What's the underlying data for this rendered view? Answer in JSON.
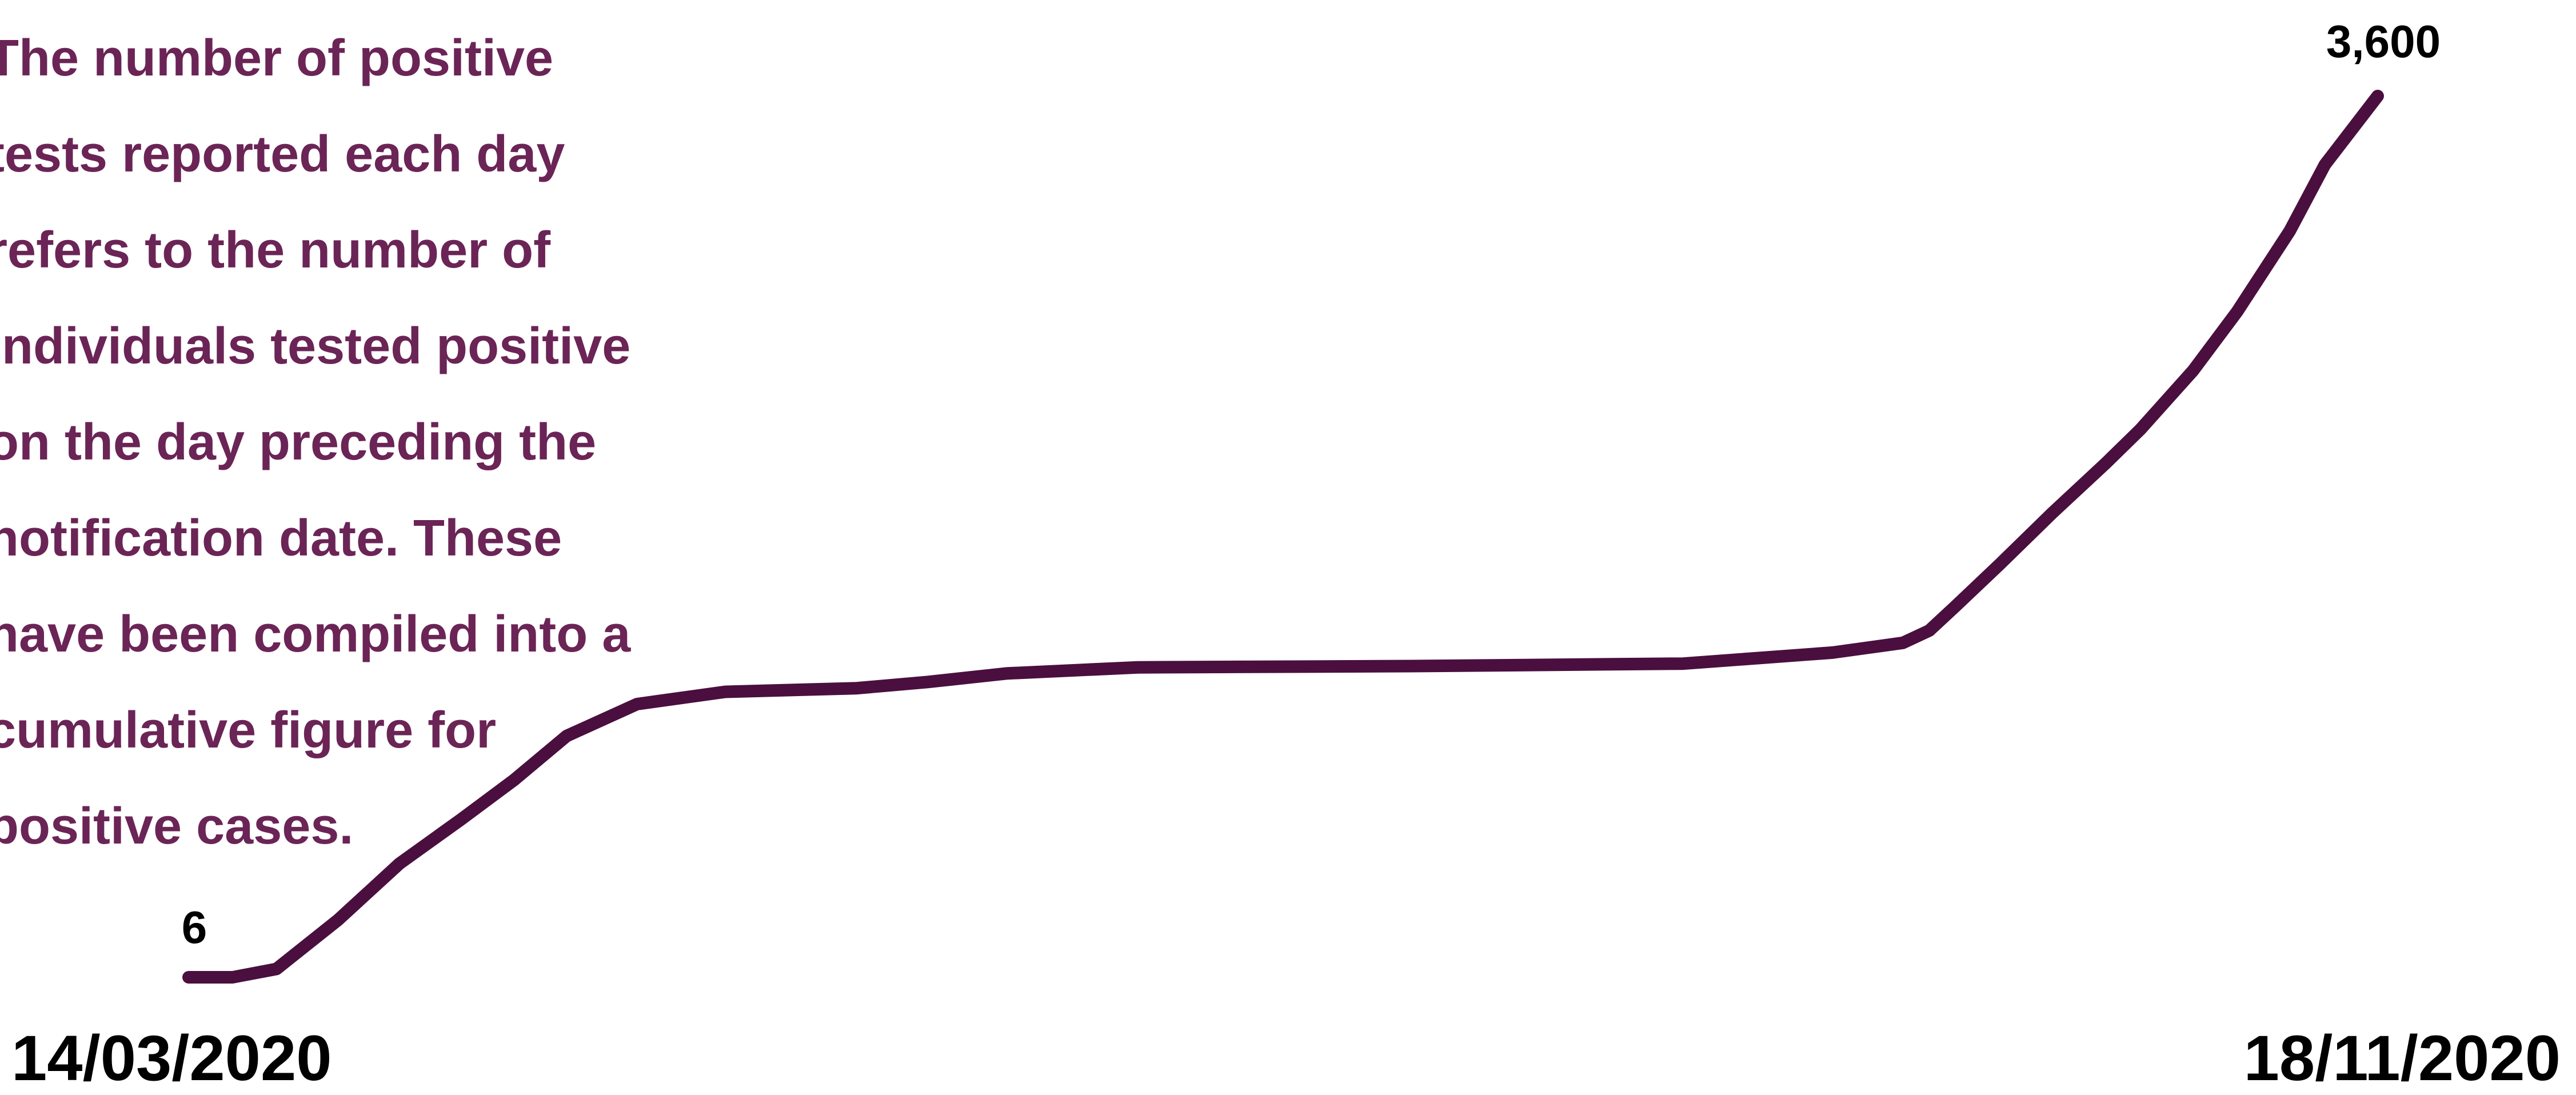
{
  "note": "The number of positive tests reported each day refers to the number of individuals tested positive on the day preceding the notification date. These have been compiled into a cumulative figure for positive cases.",
  "colors": {
    "line": "#4a0f3e",
    "note_text": "#6b2456",
    "labels": "#000000",
    "background": "#ffffff"
  },
  "chart_data": {
    "type": "line",
    "title": "",
    "xlabel": "",
    "ylabel": "",
    "x_start_label": "14/03/2020",
    "x_end_label": "18/11/2020",
    "start_value_label": "6",
    "end_value_label": "3,600",
    "grid": false,
    "legend": "none",
    "ylim": [
      6,
      3600
    ],
    "series": [
      {
        "values": [
          [
            "2020-03-14",
            6
          ],
          [
            "2020-03-19",
            6
          ],
          [
            "2020-03-24",
            40
          ],
          [
            "2020-03-31",
            240
          ],
          [
            "2020-04-07",
            470
          ],
          [
            "2020-04-14",
            650
          ],
          [
            "2020-04-20",
            810
          ],
          [
            "2020-04-26",
            990
          ],
          [
            "2020-05-04",
            1120
          ],
          [
            "2020-05-14",
            1170
          ],
          [
            "2020-05-29",
            1185
          ],
          [
            "2020-06-06",
            1210
          ],
          [
            "2020-06-15",
            1245
          ],
          [
            "2020-06-30",
            1270
          ],
          [
            "2020-07-31",
            1275
          ],
          [
            "2020-08-31",
            1285
          ],
          [
            "2020-09-17",
            1330
          ],
          [
            "2020-09-25",
            1370
          ],
          [
            "2020-09-28",
            1420
          ],
          [
            "2020-10-01",
            1520
          ],
          [
            "2020-10-06",
            1690
          ],
          [
            "2020-10-12",
            1900
          ],
          [
            "2020-10-18",
            2100
          ],
          [
            "2020-10-22",
            2240
          ],
          [
            "2020-10-28",
            2480
          ],
          [
            "2020-11-02",
            2720
          ],
          [
            "2020-11-08",
            3050
          ],
          [
            "2020-11-12",
            3320
          ],
          [
            "2020-11-18",
            3600
          ]
        ]
      }
    ]
  }
}
